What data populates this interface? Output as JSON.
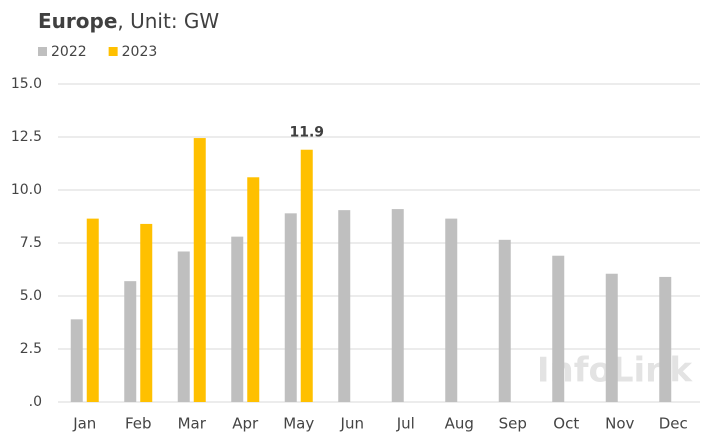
{
  "chart_data": {
    "type": "bar",
    "title": [
      "Europe",
      ", Unit: GW"
    ],
    "categories": [
      "Jan",
      "Feb",
      "Mar",
      "Apr",
      "May",
      "Jun",
      "Jul",
      "Aug",
      "Sep",
      "Oct",
      "Nov",
      "Dec"
    ],
    "series": [
      {
        "name": "2022",
        "color": "#bfbfbf",
        "values": [
          3.9,
          5.7,
          7.1,
          7.8,
          8.9,
          9.05,
          9.1,
          8.65,
          7.65,
          6.9,
          6.05,
          5.9
        ]
      },
      {
        "name": "2023",
        "color": "#ffc000",
        "values": [
          8.65,
          8.4,
          12.45,
          10.6,
          11.9,
          null,
          null,
          null,
          null,
          null,
          null,
          null
        ],
        "value_labels": [
          null,
          null,
          null,
          null,
          "11.9",
          null,
          null,
          null,
          null,
          null,
          null,
          null
        ]
      }
    ],
    "ylim": [
      0,
      15
    ],
    "yticks": [
      {
        "value": 0,
        "label": ".0"
      },
      2.5,
      {
        "value": 5,
        "label": "5.0"
      },
      7.5,
      {
        "value": 10,
        "label": "10.0"
      },
      12.5,
      {
        "value": 15,
        "label": "15.0"
      }
    ],
    "grid": true,
    "legend": "top-left",
    "watermark": "InfoLink"
  }
}
